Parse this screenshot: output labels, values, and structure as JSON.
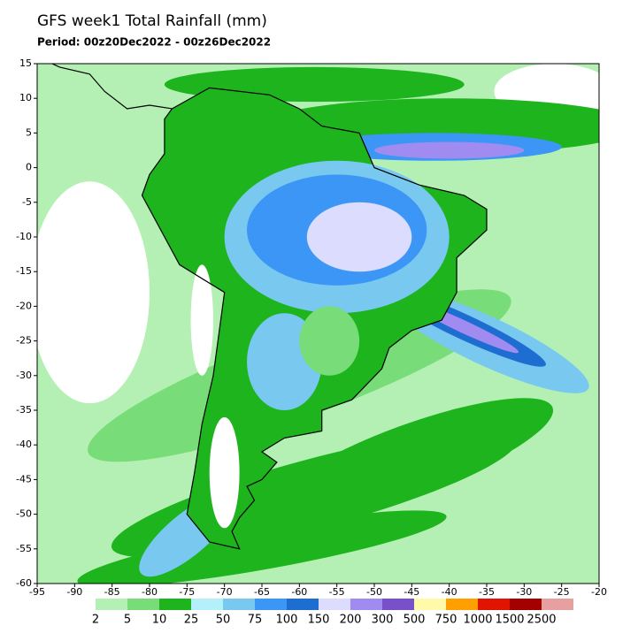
{
  "chart_data": {
    "type": "map",
    "title": "GFS week1 Total Rainfall (mm)",
    "subtitle": "Period: 00z20Dec2022 - 00z26Dec2022",
    "xlim": [
      -95,
      -20
    ],
    "ylim": [
      -60,
      15
    ],
    "xticks": [
      -95,
      -90,
      -85,
      -80,
      -75,
      -70,
      -65,
      -60,
      -55,
      -50,
      -45,
      -40,
      -35,
      -30,
      -25,
      -20
    ],
    "yticks": [
      15,
      10,
      5,
      0,
      -5,
      -10,
      -15,
      -20,
      -25,
      -30,
      -35,
      -40,
      -45,
      -50,
      -55,
      -60
    ],
    "colorbar": {
      "levels": [
        2,
        5,
        10,
        25,
        50,
        75,
        100,
        150,
        200,
        300,
        500,
        750,
        1000,
        1500,
        2500
      ],
      "colors": [
        "#b4f0b4",
        "#78dc78",
        "#1eb41e",
        "#b4f0fa",
        "#78c8f0",
        "#3c96f5",
        "#1e6ed2",
        "#dcdcff",
        "#a08cf0",
        "#7850c8",
        "#fffaaa",
        "#ffa000",
        "#e11400",
        "#a50000",
        "#e6a0a0"
      ]
    }
  }
}
